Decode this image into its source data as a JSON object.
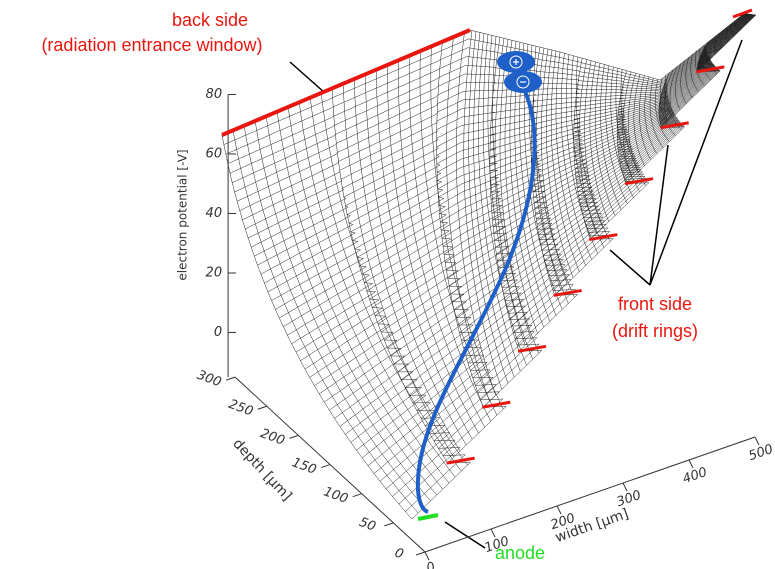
{
  "chart_data": {
    "type": "surface3d",
    "xlabel": "width [μm]",
    "ylabel": "depth [μm]",
    "zlabel": "electron potential [-V]",
    "xlim": [
      0,
      500
    ],
    "xticks": [
      0,
      100,
      200,
      300,
      400,
      500
    ],
    "ylim": [
      0,
      300
    ],
    "yticks": [
      0,
      50,
      100,
      150,
      200,
      250,
      300
    ],
    "zlim": [
      -15,
      80
    ],
    "zticks": [
      0,
      20,
      40,
      60,
      80
    ],
    "annotations": [
      "back side",
      "(radiation entrance window)",
      "front side",
      "(drift rings)",
      "anode"
    ],
    "colors": {
      "mesh": "#222222",
      "rings": "#e8160f",
      "anode": "#22dd22",
      "track": "#1f5fc8"
    }
  }
}
